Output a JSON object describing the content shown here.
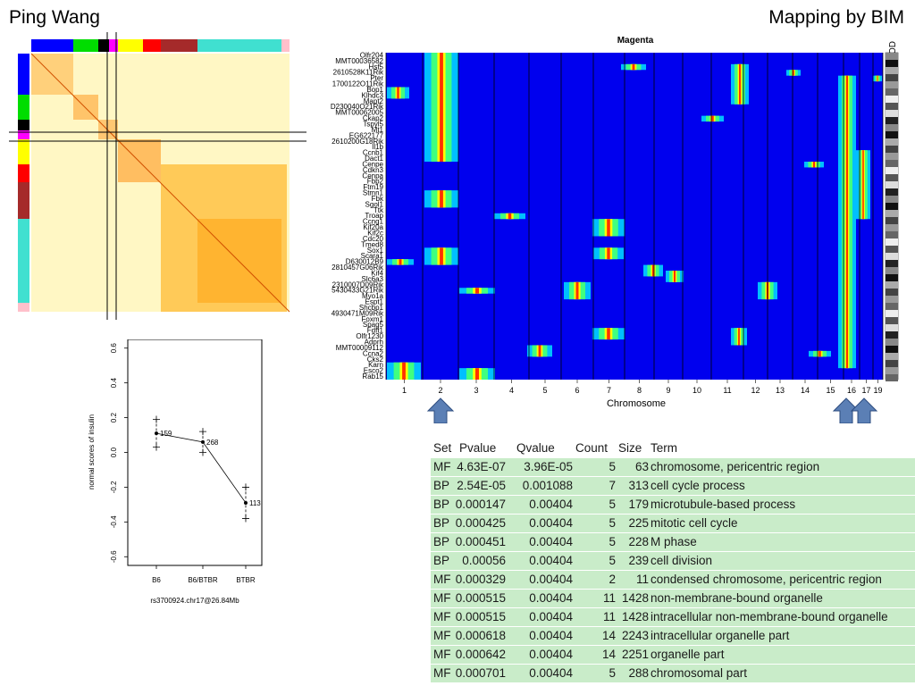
{
  "slide": {
    "title_left": "Ping Wang",
    "title_right": "Mapping by BIM"
  },
  "heatmap": {
    "title": "Magenta",
    "lod_label": "LOD",
    "x_label": "Chromosome",
    "chromosomes": [
      "1",
      "2",
      "3",
      "4",
      "5",
      "6",
      "7",
      "8",
      "9",
      "10",
      "11",
      "12",
      "13",
      "14",
      "15",
      "16",
      "17",
      "19"
    ],
    "genes": [
      "Olfr204",
      "MMT00036582",
      "Hsf5",
      "2610528K11Rik",
      "Pter",
      "1700122O11Rik",
      "Bop1",
      "Klhdc3",
      "Mapt2",
      "D230040O21Rik",
      "MMT00062005",
      "Ckap2",
      "Tspyl5",
      "Mt1",
      "EG622177",
      "2610200G18Rik",
      "Il1b",
      "Ccnb1",
      "Dact1",
      "Cenpe",
      "Cdkn3",
      "Cenpa",
      "Fbp2",
      "Ftm19",
      "Stmn1",
      "Fbk",
      "Sgol1",
      "Ttk",
      "Troap",
      "Ccng1",
      "Kif20a",
      "Kif2c",
      "Cdc20",
      "Tmed8",
      "Sox1",
      "Scara1",
      "D630012B9",
      "2810457G06Rik",
      "Kif4",
      "Slc6a3",
      "2310007D09Rik",
      "5430433G21Rik",
      "Myo1a",
      "Espt1",
      "Shcbp1",
      "4930471M09Rik",
      "Foxm1",
      "Spag5",
      "Fdft1",
      "Olfr1230",
      "Adprh",
      "MMT00009112",
      "Ccna2",
      "Cks2",
      "Karn",
      "Esco2",
      "Rab15"
    ],
    "arrow_icon": "up-arrow-icon"
  },
  "corr_matrix": {
    "module_colors": [
      "#0000ff",
      "#00dd00",
      "#000000",
      "#ff00ff",
      "#ffff00",
      "#ff0000",
      "#a52a2a",
      "#40e0d0",
      "#ffc0cb"
    ]
  },
  "chart_data": {
    "type": "scatter",
    "title": "",
    "xlabel": "rs3700924.chr17@26.84Mb",
    "ylabel": "normal scores of insulin",
    "categories": [
      "B6",
      "B6/BTBR",
      "BTBR"
    ],
    "series": [
      {
        "name": "",
        "values": [
          0.11,
          0.06,
          -0.29
        ],
        "counts": [
          "159",
          "268",
          "113"
        ]
      }
    ],
    "error_bars": {
      "upper": [
        0.19,
        0.12,
        -0.2
      ],
      "lower": [
        0.03,
        0.0,
        -0.38
      ]
    },
    "yticks": [
      "0.6",
      "0.4",
      "0.2",
      "0.0",
      "-0.2",
      "-0.4",
      "-0.6"
    ],
    "ylim": [
      -0.65,
      0.65
    ],
    "grid": false
  },
  "table": {
    "headers": [
      "Set",
      "Pvalue",
      "Qvalue",
      "Count",
      "Size",
      "Term"
    ],
    "rows": [
      [
        "MF",
        "4.63E-07",
        "3.96E-05",
        "5",
        "63",
        "chromosome, pericentric region"
      ],
      [
        "BP",
        "2.54E-05",
        "0.001088",
        "7",
        "313",
        "cell cycle process"
      ],
      [
        "BP",
        "0.000147",
        "0.00404",
        "5",
        "179",
        "microtubule-based process"
      ],
      [
        "BP",
        "0.000425",
        "0.00404",
        "5",
        "225",
        "mitotic cell cycle"
      ],
      [
        "BP",
        "0.000451",
        "0.00404",
        "5",
        "228",
        "M phase"
      ],
      [
        "BP",
        "0.00056",
        "0.00404",
        "5",
        "239",
        "cell division"
      ],
      [
        "MF",
        "0.000329",
        "0.00404",
        "2",
        "11",
        "condensed chromosome, pericentric region"
      ],
      [
        "MF",
        "0.000515",
        "0.00404",
        "11",
        "1428",
        "non-membrane-bound organelle"
      ],
      [
        "MF",
        "0.000515",
        "0.00404",
        "11",
        "1428",
        "intracellular non-membrane-bound organelle"
      ],
      [
        "MF",
        "0.000618",
        "0.00404",
        "14",
        "2243",
        "intracellular organelle part"
      ],
      [
        "MF",
        "0.000642",
        "0.00404",
        "14",
        "2251",
        "organelle part"
      ],
      [
        "MF",
        "0.000701",
        "0.00404",
        "5",
        "288",
        "chromosomal part"
      ]
    ]
  }
}
